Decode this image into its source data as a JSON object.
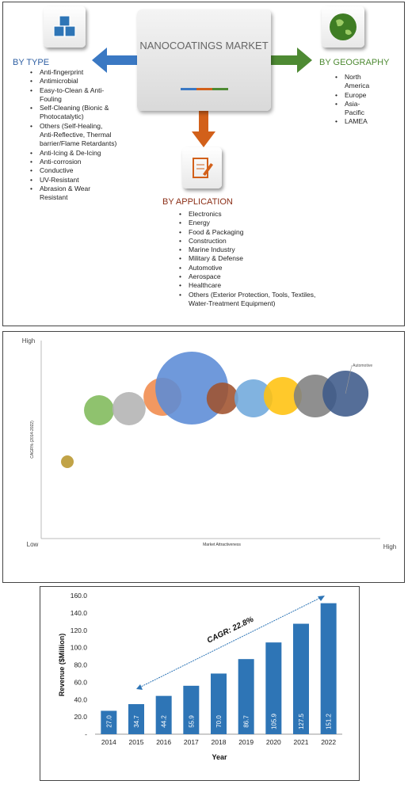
{
  "diagram": {
    "center": {
      "title": "NANOCOATINGS MARKET"
    },
    "branches": [
      {
        "title": "BY TYPE",
        "items": [
          "Anti-fingerprint",
          "Antimicrobial",
          "Easy-to-Clean & Anti-Fouling",
          "Self-Cleaning (Bionic & Photocatalytic)",
          "Others (Self-Healing, Anti-Reflective, Thermal barrier/Flame Retardants)",
          "Anti-Icing & De-Icing",
          "Anti-corrosion",
          "Conductive",
          "UV-Resistant",
          "Abrasion & Wear Resistant"
        ]
      },
      {
        "title": "BY GEOGRAPHY",
        "items": [
          "North America",
          "Europe",
          "Asia-Pacific",
          "LAMEA"
        ]
      },
      {
        "title": "BY APPLICATION",
        "items": [
          "Electronics",
          "Energy",
          "Food & Packaging",
          "Construction",
          "Marine Industry",
          "Military & Defense",
          "Automotive",
          "Aerospace",
          "Healthcare",
          "Others (Exterior Protection, Tools, Textiles, Water-Treatment Equipment)"
        ]
      }
    ]
  },
  "chart_data": [
    {
      "type": "bubble",
      "x_label": "Market Attractiveness",
      "y_label": "CAGR% (2014-2022)",
      "xlim": [
        0,
        100
      ],
      "ylim": [
        0,
        100
      ],
      "xticks": [
        {
          "value": 0,
          "label": "Low"
        },
        {
          "value": 100,
          "label": "High"
        }
      ],
      "yticks": [
        {
          "value": 100,
          "label": "High"
        }
      ],
      "x": [
        7.5,
        16.6,
        25.2,
        34.8,
        43.2,
        52,
        60.9,
        69.3,
        78.6,
        87.3
      ],
      "values": [
        38.8,
        64.8,
        65.6,
        71.6,
        76,
        70.8,
        70.8,
        72,
        72,
        73.2
      ],
      "sizes": [
        8,
        19,
        21,
        24,
        46,
        20,
        24,
        24,
        27,
        29
      ],
      "colors": [
        "#b8962e",
        "#7fba5a",
        "#b3b3b3",
        "#f08a4b",
        "#5b8bd6",
        "#a0522d",
        "#6fa8dc",
        "#ffc20e",
        "#7f7f7f",
        "#3d5a8a"
      ],
      "annotations": [
        {
          "text": "Automotive",
          "index": 9
        }
      ]
    },
    {
      "type": "bar",
      "x_label": "Year",
      "y_label": "Revenue ($Million)",
      "annotation": "CAGR: 22.8%",
      "categories": [
        "2014",
        "2015",
        "2016",
        "2017",
        "2018",
        "2019",
        "2020",
        "2021",
        "2022"
      ],
      "values": [
        27.0,
        34.7,
        44.2,
        55.9,
        70.0,
        86.7,
        105.9,
        127.5,
        151.2
      ],
      "value_labels": [
        "27.0",
        "34.7",
        "44.2",
        "55.9",
        "70.0",
        "86.7",
        "105.9",
        "127.5",
        "151.2"
      ],
      "color": "#2e75b6",
      "ylim": [
        0,
        160
      ],
      "yticks": [
        {
          "value": 0,
          "label": "-"
        },
        {
          "value": 20,
          "label": "20.0"
        },
        {
          "value": 40,
          "label": "40.0"
        },
        {
          "value": 60,
          "label": "60.0"
        },
        {
          "value": 80,
          "label": "80.0"
        },
        {
          "value": 100,
          "label": "100.0"
        },
        {
          "value": 120,
          "label": "120.0"
        },
        {
          "value": 140,
          "label": "140.0"
        },
        {
          "value": 160,
          "label": "160.0"
        }
      ]
    }
  ]
}
